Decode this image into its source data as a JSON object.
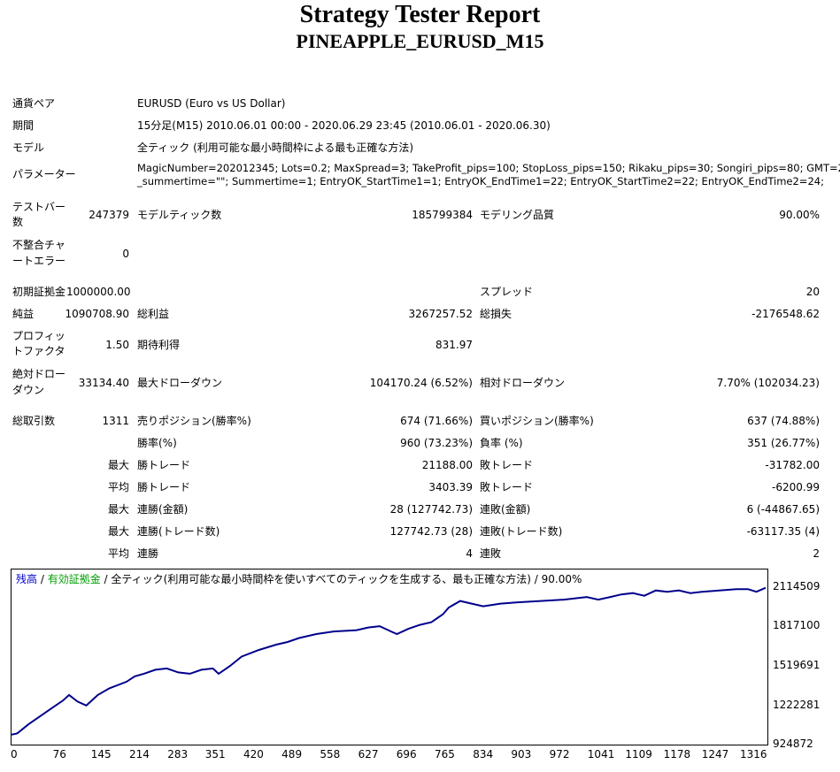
{
  "header": {
    "title": "Strategy Tester Report",
    "subtitle": "PINEAPPLE_EURUSD_M15"
  },
  "info": {
    "pair_label": "通貨ペア",
    "pair_value": "EURUSD (Euro vs US Dollar)",
    "period_label": "期間",
    "period_value": "15分足(M15) 2010.06.01 00:00 - 2020.06.29 23:45 (2010.06.01 - 2020.06.30)",
    "model_label": "モデル",
    "model_value": "全ティック (利用可能な最小時間枠による最も正確な方法)",
    "params_label": "パラメーター",
    "params_line1": "MagicNumber=202012345; Lots=0.2; MaxSpread=3; TakeProfit_pips=100; StopLoss_pips=150; Rikaku_pips=30; Songiri_pips=80; GMT=2;",
    "params_line2": "_summertime=\"\"; Summertime=1; EntryOK_StartTime1=1; EntryOK_EndTime1=22; EntryOK_StartTime2=22; EntryOK_EndTime2=24;"
  },
  "stats": {
    "bars_l1": "テストバー",
    "bars_l2": "数",
    "bars_value": "247379",
    "ticks_label": "モデルティック数",
    "ticks_value": "185799384",
    "quality_label": "モデリング品質",
    "quality_value": "90.00%",
    "mismatch_l1": "不整合チャ",
    "mismatch_l2": "ートエラー",
    "mismatch_value": "0",
    "deposit_label": "初期証拠金",
    "deposit_value": "1000000.00",
    "spread_label": "スプレッド",
    "spread_value": "20",
    "net_label": "純益",
    "net_value": "1090708.90",
    "gross_profit_label": "総利益",
    "gross_profit_value": "3267257.52",
    "gross_loss_label": "総損失",
    "gross_loss_value": "-2176548.62",
    "pf_l1": "プロフィッ",
    "pf_l2": "トファクタ",
    "pf_value": "1.50",
    "expected_label": "期待利得",
    "expected_value": "831.97",
    "absdd_l1": "絶対ドロー",
    "absdd_l2": "ダウン",
    "absdd_value": "33134.40",
    "maxdd_label": "最大ドローダウン",
    "maxdd_value": "104170.24 (6.52%)",
    "reldd_label": "相対ドローダウン",
    "reldd_value": "7.70% (102034.23)",
    "trades_label": "総取引数",
    "trades_value": "1311",
    "short_label": "売りポジション(勝率%)",
    "short_value": "674 (71.66%)",
    "long_label": "買いポジション(勝率%)",
    "long_value": "637 (74.88%)",
    "win_label": "勝率(%)",
    "win_value": "960 (73.23%)",
    "loss_label": "負率 (%)",
    "loss_value": "351 (26.77%)",
    "max_label": "最大",
    "avg_label": "平均",
    "largest_win_label": "勝トレード",
    "largest_win_value": "21188.00",
    "largest_loss_label": "敗トレード",
    "largest_loss_value": "-31782.00",
    "avg_win_label": "勝トレード",
    "avg_win_value": "3403.39",
    "avg_loss_label": "敗トレード",
    "avg_loss_value": "-6200.99",
    "max_cons_wins_money_label": "連勝(金額)",
    "max_cons_wins_money_value": "28 (127742.73)",
    "max_cons_losses_money_label": "連敗(金額)",
    "max_cons_losses_money_value": "6 (-44867.65)",
    "max_cons_wins_trades_label": "連勝(トレード数)",
    "max_cons_wins_trades_value": "127742.73 (28)",
    "max_cons_losses_trades_label": "連敗(トレード数)",
    "max_cons_losses_trades_value": "-63117.35 (4)",
    "avg_cons_wins_label": "連勝",
    "avg_cons_wins_value": "4",
    "avg_cons_losses_label": "連敗",
    "avg_cons_losses_value": "2"
  },
  "chart_data": {
    "type": "line",
    "legend": {
      "balance": "残高",
      "sep1": " / ",
      "equity": "有効証拠金",
      "rest": " / 全ティック(利用可能な最小時間枠を使いすべてのティックを生成する、最も正確な方法) / 90.00%"
    },
    "colors": {
      "line": "#00008b",
      "balance_label": "#0000cd",
      "equity_label": "#00a000"
    },
    "y_ticks": [
      "2114509",
      "1817100",
      "1519691",
      "1222281",
      "924872"
    ],
    "x_ticks": [
      "0",
      "76",
      "145",
      "214",
      "283",
      "351",
      "420",
      "489",
      "558",
      "627",
      "696",
      "765",
      "834",
      "903",
      "972",
      "1041",
      "1109",
      "1178",
      "1247",
      "1316"
    ],
    "ylim": [
      924872,
      2114509
    ],
    "xlim": [
      0,
      1311
    ],
    "x": [
      0,
      10,
      30,
      50,
      70,
      90,
      100,
      115,
      130,
      140,
      150,
      170,
      200,
      214,
      230,
      250,
      270,
      290,
      310,
      330,
      350,
      360,
      380,
      400,
      430,
      460,
      480,
      500,
      530,
      560,
      600,
      620,
      640,
      660,
      670,
      690,
      710,
      730,
      750,
      760,
      780,
      800,
      820,
      850,
      880,
      920,
      960,
      980,
      1000,
      1020,
      1041,
      1060,
      1080,
      1100,
      1120,
      1140,
      1160,
      1180,
      1200,
      1230,
      1260,
      1280,
      1295,
      1311
    ],
    "y": [
      1000000,
      1010000,
      1080000,
      1140000,
      1200000,
      1260000,
      1300000,
      1250000,
      1220000,
      1260000,
      1300000,
      1350000,
      1400000,
      1440000,
      1460000,
      1490000,
      1500000,
      1470000,
      1460000,
      1490000,
      1500000,
      1460000,
      1520000,
      1590000,
      1640000,
      1680000,
      1700000,
      1730000,
      1760000,
      1780000,
      1790000,
      1810000,
      1820000,
      1780000,
      1760000,
      1800000,
      1830000,
      1850000,
      1910000,
      1960000,
      2010000,
      1990000,
      1970000,
      1990000,
      2000000,
      2010000,
      2020000,
      2030000,
      2040000,
      2020000,
      2040000,
      2060000,
      2070000,
      2050000,
      2090000,
      2080000,
      2090000,
      2070000,
      2080000,
      2090000,
      2100000,
      2100000,
      2080000,
      2110000
    ]
  }
}
